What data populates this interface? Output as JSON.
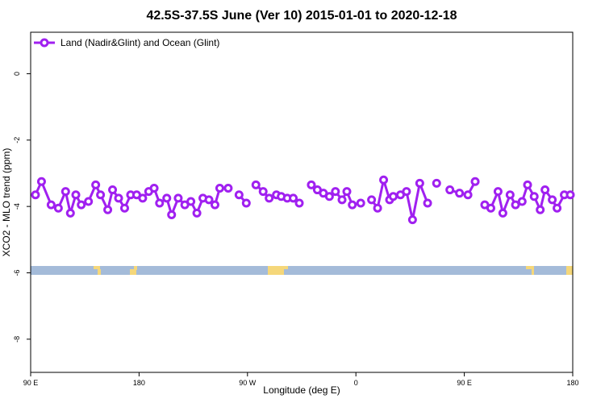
{
  "chart_data": {
    "type": "line",
    "title": "42.5S-37.5S June (Ver 10)   2015-01-01 to 2020-12-18",
    "x_label": "Longitude (deg E)",
    "y_label": "XCO2 - MLO trend (ppm)",
    "xlim": [
      90,
      540
    ],
    "ylim": [
      -9,
      1.25
    ],
    "xticks": [
      {
        "value": 90,
        "label": "90 E"
      },
      180,
      {
        "value": 270,
        "label": "90 W"
      },
      {
        "value": 360,
        "label": "0"
      },
      {
        "value": 450,
        "label": "90 E"
      },
      {
        "value": 540,
        "label": "180"
      }
    ],
    "yticks": [
      0,
      -2,
      -4,
      -6,
      -8
    ],
    "legend": "top-left",
    "x": [
      94,
      99,
      107,
      113,
      119,
      123,
      127.5,
      132,
      138,
      144,
      148,
      154,
      158,
      163,
      168,
      173,
      178,
      183,
      188,
      192.5,
      197,
      203,
      207,
      212.5,
      218,
      223,
      228,
      233,
      238,
      243,
      247,
      254,
      260,
      263,
      269,
      274,
      277,
      283,
      288,
      294,
      298,
      303,
      308,
      313,
      320,
      323,
      328,
      333,
      338,
      343,
      348.5,
      352.5,
      357,
      364,
      370,
      373,
      378,
      383,
      388,
      391,
      397,
      402,
      407,
      413,
      419.5,
      424,
      427,
      430,
      438,
      446,
      453,
      459,
      462,
      467,
      472,
      478,
      482,
      488,
      492.5,
      498,
      502.5,
      508,
      513,
      517,
      523,
      527,
      533,
      538
    ],
    "series": [
      {
        "name": "Land (Nadir&Glint) and Ocean (Glint)",
        "color": "#a020f0",
        "values": [
          -3.65,
          -3.25,
          -3.95,
          -4.05,
          -3.55,
          -4.2,
          -3.65,
          -3.95,
          -3.85,
          -3.35,
          -3.65,
          -4.1,
          -3.5,
          -3.75,
          -4.05,
          -3.65,
          -3.65,
          -3.75,
          -3.55,
          -3.45,
          -3.9,
          -3.75,
          -4.25,
          -3.75,
          -3.95,
          -3.85,
          -4.2,
          -3.75,
          -3.8,
          -3.95,
          -3.45,
          -3.45,
          null,
          -3.65,
          -3.9,
          null,
          -3.35,
          -3.55,
          -3.75,
          -3.65,
          -3.7,
          -3.75,
          -3.75,
          -3.9,
          null,
          -3.35,
          -3.5,
          -3.6,
          -3.7,
          -3.55,
          -3.8,
          -3.55,
          -3.95,
          -3.9,
          null,
          -3.8,
          -4.05,
          -3.2,
          -3.8,
          -3.7,
          -3.65,
          -3.55,
          -4.4,
          -3.3,
          -3.9,
          null,
          -3.3,
          null,
          -3.5,
          -3.6,
          -3.65,
          -3.25,
          null,
          -3.95,
          -4.05,
          -3.55,
          -4.2,
          -3.65,
          -3.95,
          -3.85,
          -3.35,
          -3.7,
          -4.1,
          -3.5,
          -3.8,
          -4.05,
          -3.65,
          -3.65
        ]
      }
    ]
  }
}
